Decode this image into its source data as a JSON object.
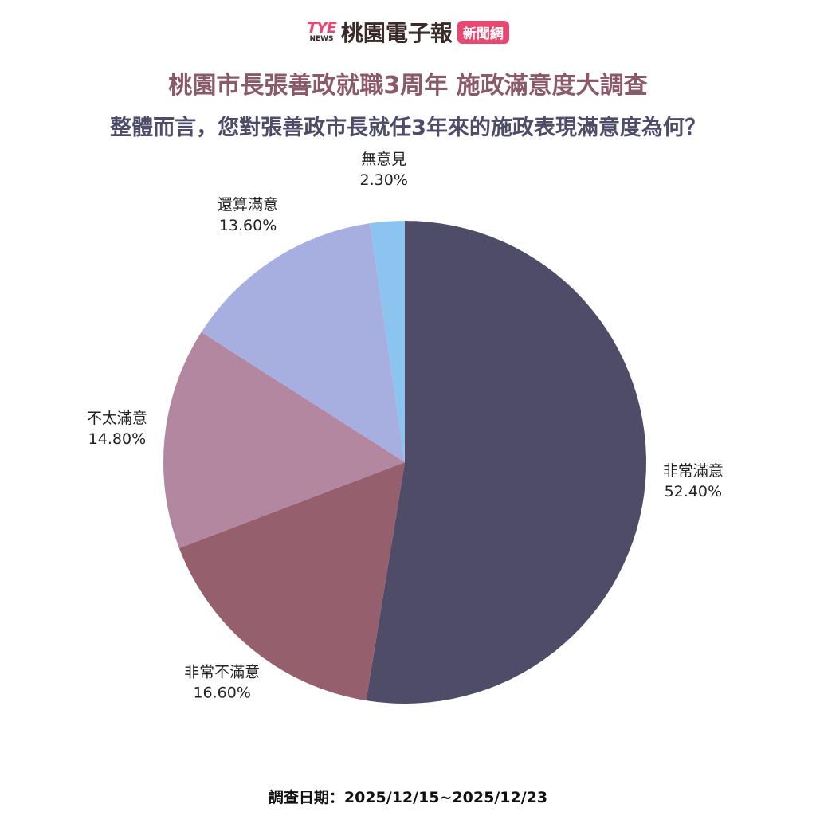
{
  "header": {
    "logo_text": "TYE",
    "logo_sub": "NEWS",
    "brand": "桃園電子報",
    "badge": "新聞網"
  },
  "chart_data": {
    "type": "pie",
    "title": "桃園市長張善政就職3周年  施政滿意度大調查",
    "subtitle": "整體而言，您對張善政市長就任3年來的施政表現滿意度為何？",
    "start": "top",
    "direction": "clockwise",
    "slices": [
      {
        "label": "非常滿意",
        "value": 52.4,
        "text": "52.40%",
        "color": "#4f4c68"
      },
      {
        "label": "非常不滿意",
        "value": 16.6,
        "text": "16.60%",
        "color": "#955f6d"
      },
      {
        "label": "不太滿意",
        "value": 14.8,
        "text": "14.80%",
        "color": "#b3879f"
      },
      {
        "label": "還算滿意",
        "value": 13.6,
        "text": "13.60%",
        "color": "#a7afe0"
      },
      {
        "label": "無意見",
        "value": 2.3,
        "text": "2.30%",
        "color": "#8bc4ef"
      }
    ]
  },
  "footer": "調查日期：2025/12/15~2025/12/23"
}
